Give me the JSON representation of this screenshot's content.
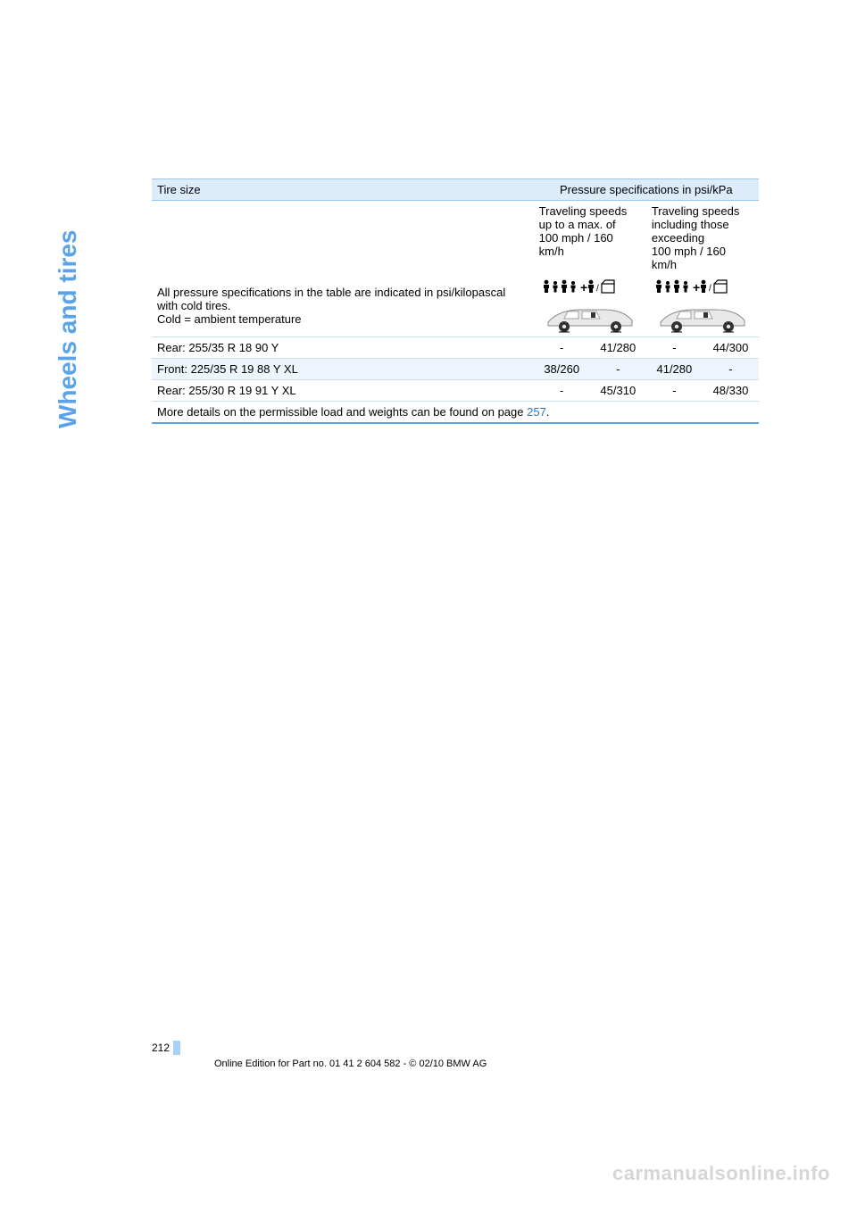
{
  "colors": {
    "accent": "#5aa3e8",
    "header_bg": "#dcecfa",
    "row_alt_bg": "#eef5fc",
    "row_border": "#c9dff3",
    "link": "#2d74c4",
    "watermark": "#d6d6d6",
    "page_marker": "#a7d2f5"
  },
  "side_title": "Wheels and tires",
  "table": {
    "header": {
      "col1": "Tire size",
      "col2": "Pressure specifications in psi/kPa"
    },
    "subhead": {
      "low": "Traveling speeds\nup to a max. of\n100 mph / 160 km/h",
      "high": "Traveling speeds\nincluding those\nexceeding\n100 mph / 160 km/h"
    },
    "note": "All pressure specifications in the table are indicated in psi/kilopascal with cold tires.\nCold = ambient temperature",
    "rows": [
      {
        "label": "Rear: 255/35 R 18 90 Y",
        "c1": "-",
        "c2": "41/280",
        "c3": "-",
        "c4": "44/300",
        "alt": false
      },
      {
        "label": "Front: 225/35 R 19 88 Y XL",
        "c1": "38/260",
        "c2": "-",
        "c3": "41/280",
        "c4": "-",
        "alt": true
      },
      {
        "label": "Rear: 255/30 R 19 91 Y XL",
        "c1": "-",
        "c2": "45/310",
        "c3": "-",
        "c4": "48/330",
        "alt": false
      }
    ],
    "footer_pre": "More details on the permissible load and weights can be found on page ",
    "footer_link": "257",
    "footer_post": "."
  },
  "page_number": "212",
  "edition_line": "Online Edition for Part no. 01 41 2 604 582 - © 02/10 BMW AG",
  "watermark": "carmanualsonline.info"
}
